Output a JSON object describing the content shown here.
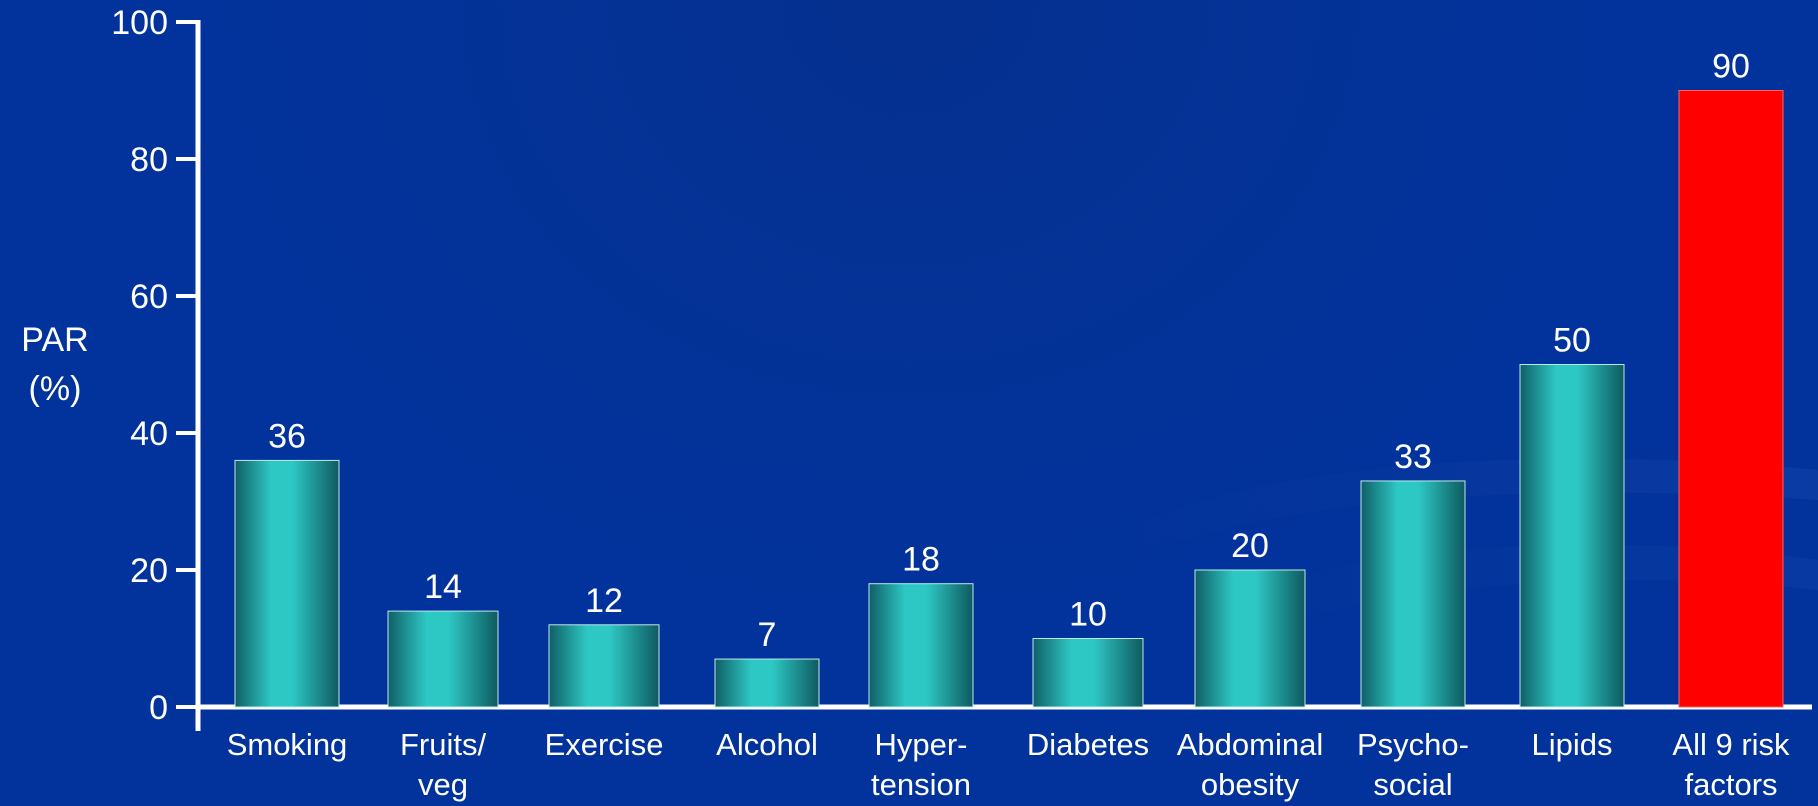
{
  "chart_data": {
    "type": "bar",
    "ylabel": [
      "PAR",
      "(%)"
    ],
    "ylim": [
      0,
      100
    ],
    "yticks": [
      0,
      20,
      40,
      60,
      80,
      100
    ],
    "grid": false,
    "categories": [
      [
        "Smoking"
      ],
      [
        "Fruits/",
        "veg"
      ],
      [
        "Exercise"
      ],
      [
        "Alcohol"
      ],
      [
        "Hyper-",
        "tension"
      ],
      [
        "Diabetes"
      ],
      [
        "Abdominal",
        "obesity"
      ],
      [
        "Psycho-",
        "social"
      ],
      [
        "Lipids"
      ],
      [
        "All 9 risk",
        "factors"
      ]
    ],
    "values": [
      36,
      14,
      12,
      7,
      18,
      10,
      20,
      33,
      50,
      90
    ],
    "data_labels": [
      "36",
      "14",
      "12",
      "7",
      "18",
      "10",
      "20",
      "33",
      "50",
      "90"
    ],
    "colors": {
      "bar": "#2ec4c0",
      "highlight_bar": "#ff0000",
      "axis": "#ffffff",
      "background": "#02339c"
    },
    "highlight_index": 9
  }
}
